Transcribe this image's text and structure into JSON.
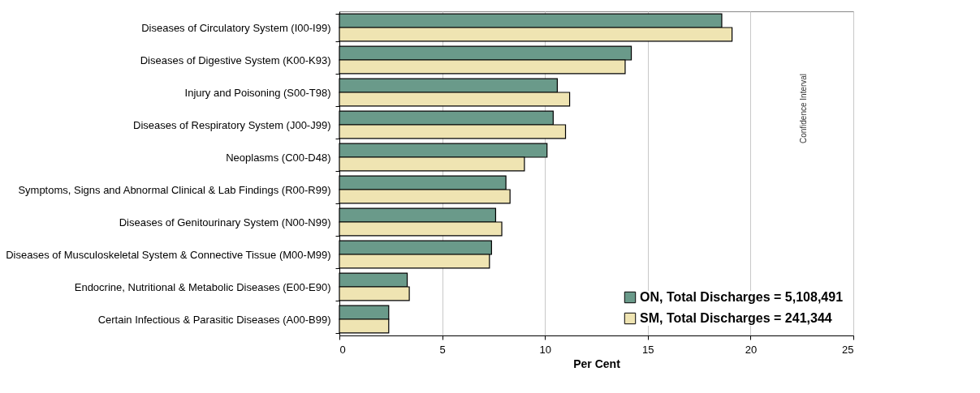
{
  "chart_data": {
    "type": "bar",
    "orientation": "horizontal",
    "xlabel": "Per Cent",
    "categories": [
      "Diseases of Circulatory System (I00-I99)",
      "Diseases of Digestive System (K00-K93)",
      "Injury and Poisoning (S00-T98)",
      "Diseases of Respiratory System (J00-J99)",
      "Neoplasms (C00-D48)",
      "Symptoms, Signs and Abnormal Clinical & Lab Findings (R00-R99)",
      "Diseases of Genitourinary System (N00-N99)",
      "Diseases of Musculoskeletal System & Connective Tissue (M00-M99)",
      "Endocrine, Nutritional & Metabolic Diseases (E00-E90)",
      "Certain Infectious & Parasitic Diseases (A00-B99)"
    ],
    "series": [
      {
        "name": "ON, Total Discharges = 5,108,491",
        "color": "#6a9a8a",
        "values": [
          18.6,
          14.2,
          10.6,
          10.4,
          10.1,
          8.1,
          7.6,
          7.4,
          3.3,
          2.4
        ]
      },
      {
        "name": "SM, Total Discharges = 241,344",
        "color": "#efe4b2",
        "values": [
          19.1,
          13.9,
          11.2,
          11.0,
          9.0,
          8.3,
          7.9,
          7.3,
          3.4,
          2.4
        ]
      }
    ],
    "xlim": [
      0,
      25
    ],
    "xticks": [
      0,
      5,
      10,
      15,
      20,
      25
    ],
    "grid": "x",
    "legend": "bottom right",
    "annotations": [
      "Confidence Interval"
    ]
  }
}
